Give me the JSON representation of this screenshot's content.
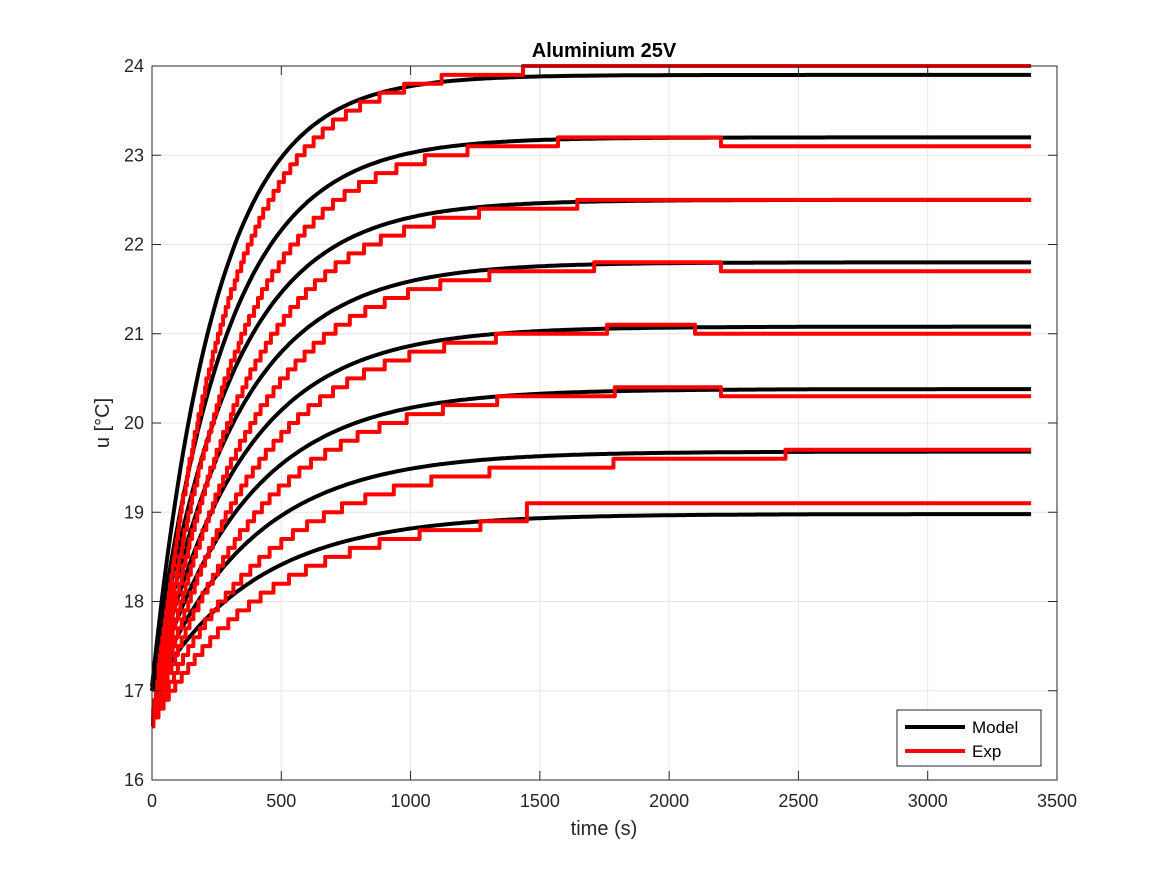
{
  "chart_data": {
    "type": "line",
    "title": "Aluminium 25V",
    "xlabel": "time (s)",
    "ylabel": "u [°C]",
    "xlim": [
      0,
      3500
    ],
    "ylim": [
      16,
      24
    ],
    "xticks": [
      0,
      500,
      1000,
      1500,
      2000,
      2500,
      3000,
      3500
    ],
    "yticks": [
      16,
      17,
      18,
      19,
      20,
      21,
      22,
      23,
      24
    ],
    "grid": true,
    "legend_position": "bottom-right",
    "legend": [
      {
        "label": "Model",
        "color": "#000000"
      },
      {
        "label": "Exp",
        "color": "#ff0000"
      }
    ],
    "time_constants_s": [
      250,
      280,
      300,
      320,
      340,
      360,
      380,
      400
    ],
    "model_start_values": [
      17.05,
      17.0,
      17.0,
      17.0,
      17.0,
      17.0,
      17.0,
      17.0
    ],
    "series": [
      {
        "legend": "Model",
        "color": "#000000",
        "x_end": 3400,
        "final": [
          23.9,
          23.2,
          22.5,
          21.8,
          21.08,
          20.38,
          19.68,
          18.98
        ]
      },
      {
        "legend": "Exp",
        "color": "#ff0000",
        "x_end": 3400,
        "start": 16.65,
        "step": 0.1,
        "final": [
          24.0,
          23.1,
          22.5,
          21.7,
          21.0,
          20.3,
          19.7,
          19.1
        ],
        "plateau": [
          24.0,
          23.2,
          22.5,
          21.8,
          21.1,
          20.4,
          19.6,
          19.0
        ],
        "switch_time_s": [
          2300,
          2200,
          2600,
          2200,
          2100,
          2200,
          2450,
          1450
        ]
      }
    ]
  },
  "colors": {
    "model": "#000000",
    "exp": "#ff0000",
    "grid": "#e6e6e6",
    "axis": "#262626"
  }
}
